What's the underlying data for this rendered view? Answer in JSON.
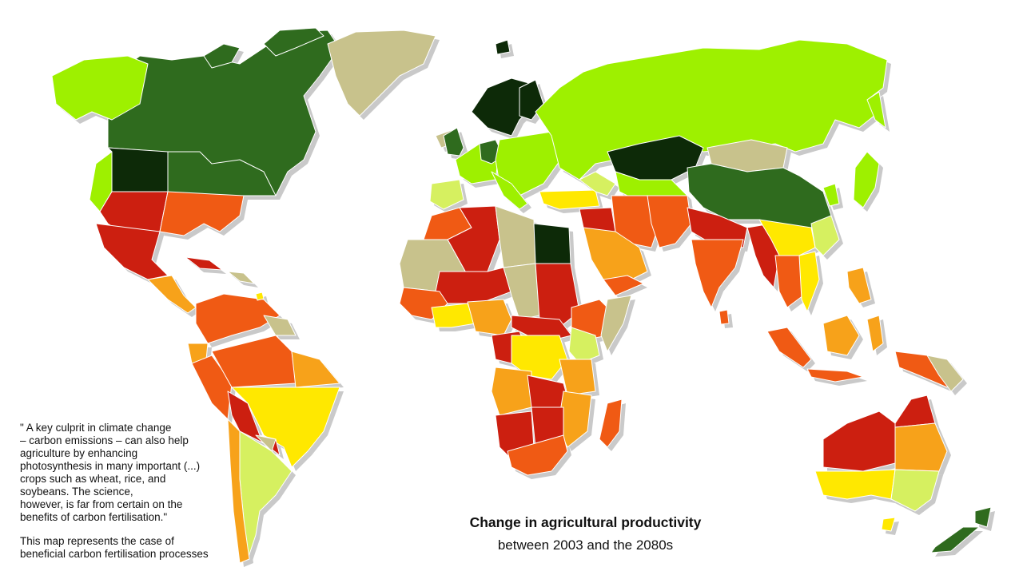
{
  "map": {
    "title": "Change in agricultural productivity",
    "subtitle": "between 2003 and the 2080s",
    "quote": "\" A key culprit in climate change\n– carbon emissions – can also help\nagriculture by enhancing\nphotosynthesis in many important (...)\ncrops such as wheat, rice, and\nsoybeans. The science,\nhowever, is far from certain on the\nbenefits of carbon fertilisation.\"",
    "note": "This map represents the case of\nbeneficial carbon fertilisation processes",
    "colors": {
      "very_dark_green": "#0d2a08",
      "dark_green": "#2f6b1e",
      "bright_green": "#9ef000",
      "light_green": "#d6f060",
      "khaki": "#c8c28c",
      "yellow": "#ffe800",
      "orange": "#f7a21a",
      "red_orange": "#f05a14",
      "red": "#cc1f10"
    }
  }
}
